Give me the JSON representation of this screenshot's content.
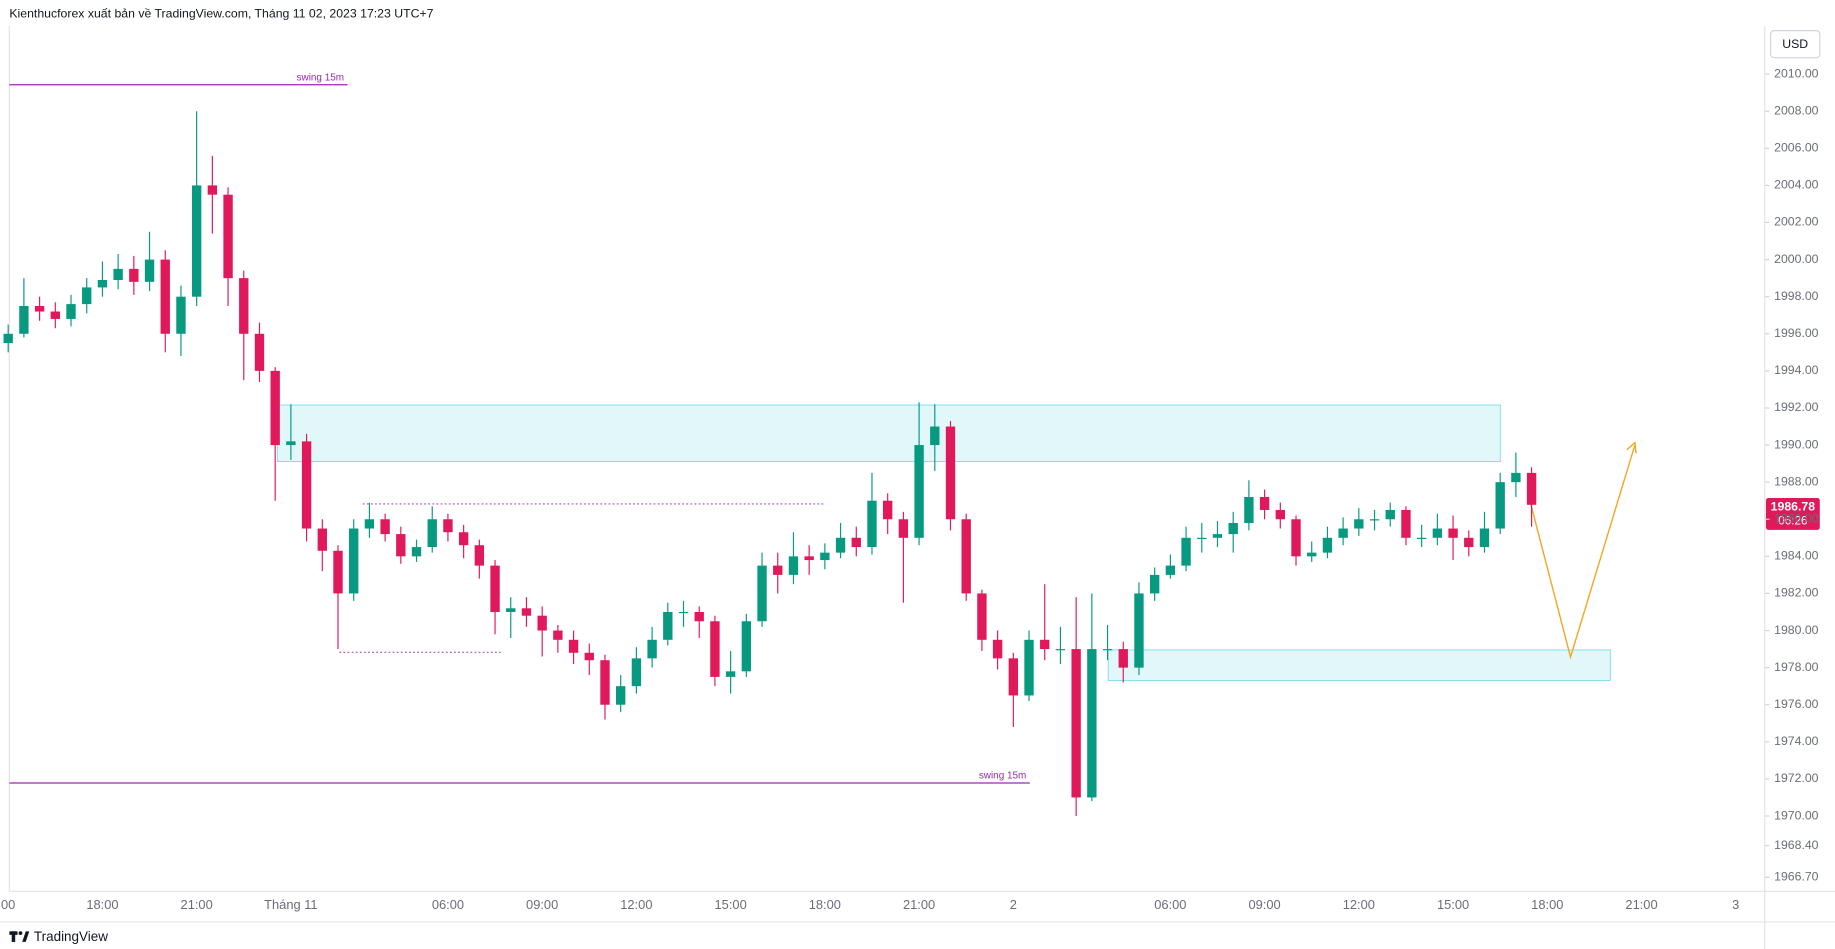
{
  "chart_data": {
    "type": "candlestick",
    "title": "Kienthucforex xuất bản về TradingView.com, Tháng 11 02, 2023 17:23 UTC+7",
    "currency": "USD",
    "brand": "TradingView",
    "annotations": [
      "swing 15m",
      "swing 15m"
    ],
    "last_price_label": "1986.78",
    "countdown": "06:26",
    "up_color": "#089981",
    "down_color": "#e0195a",
    "grid": false,
    "ylim": [
      1965.94,
      2012.6
    ],
    "yticks": [
      {
        "value": 2010,
        "label": "2010.00"
      },
      {
        "value": 2008,
        "label": "2008.00"
      },
      {
        "value": 2006,
        "label": "2006.00"
      },
      {
        "value": 2004,
        "label": "2004.00"
      },
      {
        "value": 2002,
        "label": "2002.00"
      },
      {
        "value": 2000,
        "label": "2000.00"
      },
      {
        "value": 1998,
        "label": "1998.00"
      },
      {
        "value": 1996,
        "label": "1996.00"
      },
      {
        "value": 1994,
        "label": "1994.00"
      },
      {
        "value": 1992,
        "label": "1992.00"
      },
      {
        "value": 1990,
        "label": "1990.00"
      },
      {
        "value": 1988,
        "label": "1988.00"
      },
      {
        "value": 1986,
        "label": "1986.00"
      },
      {
        "value": 1984,
        "label": "1984.00"
      },
      {
        "value": 1982,
        "label": "1982.00"
      },
      {
        "value": 1980,
        "label": "1980.00"
      },
      {
        "value": 1978,
        "label": "1978.00"
      },
      {
        "value": 1976,
        "label": "1976.00"
      },
      {
        "value": 1974,
        "label": "1974.00"
      },
      {
        "value": 1972,
        "label": "1972.00"
      },
      {
        "value": 1970,
        "label": "1970.00"
      },
      {
        "value": 1968.4,
        "label": "1968.40"
      },
      {
        "value": 1966.7,
        "label": "1966.70"
      }
    ],
    "categories": [
      "00",
      null,
      null,
      null,
      null,
      null,
      "18:00",
      null,
      null,
      null,
      null,
      null,
      "21:00",
      null,
      null,
      null,
      null,
      null,
      "Tháng 11",
      null,
      null,
      null,
      null,
      null,
      null,
      null,
      null,
      null,
      "06:00",
      null,
      null,
      null,
      null,
      null,
      "09:00",
      null,
      null,
      null,
      null,
      null,
      "12:00",
      null,
      null,
      null,
      null,
      null,
      "15:00",
      null,
      null,
      null,
      null,
      null,
      "18:00",
      null,
      null,
      null,
      null,
      null,
      "21:00",
      null,
      null,
      null,
      null,
      null,
      "2",
      null,
      null,
      null,
      null,
      null,
      null,
      null,
      null,
      null,
      "06:00",
      null,
      null,
      null,
      null,
      null,
      "09:00",
      null,
      null,
      null,
      null,
      null,
      "12:00",
      null,
      null,
      null,
      null,
      null,
      "15:00",
      null,
      null,
      null,
      null,
      null,
      "18:00",
      null,
      null,
      null,
      null,
      null,
      "21:00",
      null,
      null,
      null,
      null,
      null,
      "3"
    ],
    "open": [
      1995.5,
      1996,
      1997.5,
      1997.2,
      1996.8,
      1997.6,
      1998.5,
      1998.9,
      1999.5,
      1998.8,
      2000,
      1996,
      1998,
      2004,
      2003.5,
      1999,
      1996,
      1994,
      1990,
      1990.2,
      1985.5,
      1984.3,
      1982,
      1985.5,
      1986,
      1985.2,
      1984,
      1984.5,
      1986,
      1985.3,
      1984.6,
      1983.5,
      1981,
      1981.2,
      1980.8,
      1980,
      1979.5,
      1978.8,
      1978.4,
      1976,
      1977,
      1978.5,
      1979.5,
      1981,
      1981,
      1980.5,
      1977.5,
      1977.8,
      1980.5,
      1983.5,
      1983,
      1984,
      1983.8,
      1984.2,
      1985,
      1984.5,
      1987,
      1986,
      1985,
      1990,
      1991,
      1986,
      1982,
      1979.5,
      1978.5,
      1976.5,
      1979.5,
      1979,
      1979,
      1971,
      1979,
      1979,
      1978,
      1982,
      1983,
      1983.5,
      1985,
      1985,
      1985.2,
      1985.8,
      1987.2,
      1986.5,
      1986,
      1984,
      1984.2,
      1985,
      1985.5,
      1986,
      1986,
      1986.5,
      1985,
      1985,
      1985.5,
      1985,
      1984.5,
      1985.5,
      1988,
      1988.5,
      null,
      null,
      null,
      null,
      null,
      null,
      null,
      null,
      null,
      null,
      null,
      null,
      null
    ],
    "high": [
      1996.5,
      1999,
      1998,
      1997.7,
      1998.1,
      1999,
      1999.9,
      2000.3,
      2000.2,
      2001.5,
      2000.5,
      1998.6,
      2008,
      2005.6,
      2003.9,
      1999.4,
      1996.6,
      1994.2,
      1992.2,
      1990.6,
      1986,
      1984.6,
      1986,
      1986.9,
      1986.3,
      1985.6,
      1984.9,
      1986.7,
      1986.3,
      1985.7,
      1984.9,
      1983.8,
      1981.8,
      1981.8,
      1981.3,
      1980.3,
      1980,
      1979.3,
      1978.7,
      1977.6,
      1979.1,
      1980.2,
      1981.5,
      1981.6,
      1981.3,
      1980.8,
      1978.9,
      1980.9,
      1984.2,
      1984.2,
      1985.3,
      1984.6,
      1984.7,
      1985.8,
      1985.6,
      1988.5,
      1987.4,
      1986.4,
      1992.3,
      1992.2,
      1991.3,
      1986.3,
      1982.2,
      1980,
      1978.8,
      1980,
      1982.5,
      1980.2,
      1981.8,
      1982,
      1980.3,
      1979.4,
      1982.6,
      1983.4,
      1984.1,
      1985.6,
      1985.8,
      1985.9,
      1986.4,
      1988.1,
      1987.6,
      1986.9,
      1986.2,
      1984.8,
      1985.6,
      1986.1,
      1986.6,
      1986.5,
      1986.9,
      1986.7,
      1985.7,
      1986.3,
      1986.2,
      1985.4,
      1986.4,
      1988.5,
      1989.6,
      1988.8,
      null,
      null,
      null,
      null,
      null,
      null,
      null,
      null,
      null,
      null,
      null,
      null,
      null
    ],
    "low": [
      1995,
      1995.8,
      1996.7,
      1996.3,
      1996.4,
      1997.1,
      1998,
      1998.4,
      1998.1,
      1998.3,
      1995,
      1994.8,
      1997.5,
      2001.4,
      1997.5,
      1993.5,
      1993.4,
      1987,
      1989.2,
      1984.8,
      1983.2,
      1979,
      1981.6,
      1985,
      1984.8,
      1983.6,
      1983.7,
      1984.2,
      1984.8,
      1983.9,
      1982.8,
      1979.8,
      1979.6,
      1980.2,
      1978.6,
      1978.8,
      1978.2,
      1977.6,
      1975.2,
      1975.6,
      1976.6,
      1978,
      1979.2,
      1980.2,
      1979.6,
      1977,
      1976.6,
      1977.5,
      1980.2,
      1982,
      1982.5,
      1983,
      1983.3,
      1983.9,
      1984,
      1984.1,
      1985.2,
      1981.5,
      1984.6,
      1988.6,
      1985.4,
      1981.6,
      1978.9,
      1977.9,
      1974.8,
      1976.2,
      1978.4,
      1978.2,
      1970,
      1970.8,
      1978.4,
      1977.2,
      1977.6,
      1981.6,
      1982.8,
      1983.2,
      1984.2,
      1984.5,
      1984.2,
      1985.4,
      1986,
      1985.5,
      1983.5,
      1983.7,
      1983.9,
      1984.6,
      1985.1,
      1985.4,
      1985.6,
      1984.6,
      1984.5,
      1984.6,
      1983.8,
      1984,
      1984.2,
      1985.2,
      1987.2,
      1985.6,
      null,
      null,
      null,
      null,
      null,
      null,
      null,
      null,
      null,
      null,
      null,
      null,
      null
    ],
    "close": [
      1996,
      1997.5,
      1997.2,
      1996.8,
      1997.6,
      1998.5,
      1998.9,
      1999.5,
      1998.8,
      2000,
      1996,
      1998,
      2004,
      2003.5,
      1999,
      1996,
      1994,
      1990,
      1990.2,
      1985.5,
      1984.3,
      1982,
      1985.5,
      1986,
      1985.2,
      1984,
      1984.5,
      1986,
      1985.3,
      1984.6,
      1983.5,
      1981,
      1981.2,
      1980.8,
      1980,
      1979.5,
      1978.8,
      1978.4,
      1976,
      1977,
      1978.5,
      1979.5,
      1981,
      1981,
      1980.5,
      1977.5,
      1977.8,
      1980.5,
      1983.5,
      1983,
      1984,
      1983.8,
      1984.2,
      1985,
      1984.5,
      1987,
      1986,
      1985,
      1990,
      1991,
      1986,
      1982,
      1979.5,
      1978.5,
      1976.5,
      1979.5,
      1979,
      1979,
      1971,
      1979,
      1979,
      1978,
      1982,
      1983,
      1983.5,
      1985,
      1985,
      1985.2,
      1985.8,
      1987.2,
      1986.5,
      1986,
      1984,
      1984.2,
      1985,
      1985.5,
      1986,
      1986,
      1986.5,
      1985,
      1985,
      1985.5,
      1985,
      1984.5,
      1985.5,
      1988,
      1988.5,
      1986.78,
      null,
      null,
      null,
      null,
      null,
      null,
      null,
      null,
      null,
      null,
      null,
      null,
      null
    ]
  }
}
